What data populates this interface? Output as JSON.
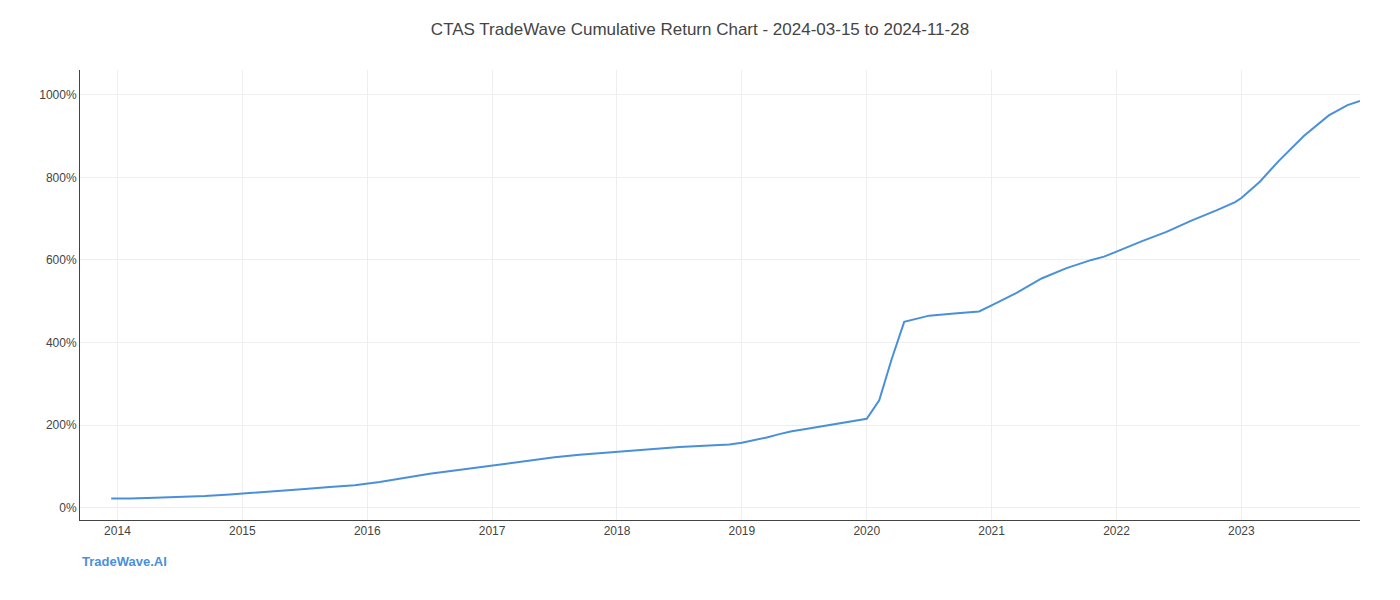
{
  "chart_data": {
    "type": "line",
    "title": "CTAS TradeWave Cumulative Return Chart - 2024-03-15 to 2024-11-28",
    "annotations": [
      "TradeWave.AI"
    ],
    "x": [
      2013.95,
      2014.1,
      2014.3,
      2014.5,
      2014.7,
      2014.9,
      2015.1,
      2015.3,
      2015.5,
      2015.7,
      2015.9,
      2016.1,
      2016.3,
      2016.5,
      2016.7,
      2016.9,
      2017.1,
      2017.3,
      2017.5,
      2017.7,
      2017.9,
      2018.1,
      2018.3,
      2018.5,
      2018.7,
      2018.9,
      2019.0,
      2019.1,
      2019.2,
      2019.3,
      2019.4,
      2019.5,
      2019.6,
      2019.7,
      2019.8,
      2019.9,
      2020.0,
      2020.1,
      2020.2,
      2020.3,
      2020.5,
      2020.7,
      2020.9,
      2021.0,
      2021.2,
      2021.4,
      2021.6,
      2021.8,
      2021.9,
      2022.0,
      2022.2,
      2022.4,
      2022.6,
      2022.8,
      2022.95,
      2023.0,
      2023.15,
      2023.3,
      2023.5,
      2023.7,
      2023.85,
      2023.95
    ],
    "values": [
      22,
      22,
      24,
      26,
      28,
      32,
      36,
      40,
      45,
      50,
      54,
      62,
      72,
      82,
      90,
      98,
      106,
      114,
      122,
      128,
      133,
      138,
      142,
      147,
      150,
      153,
      157,
      163,
      170,
      178,
      185,
      190,
      195,
      200,
      205,
      210,
      215,
      260,
      360,
      450,
      465,
      470,
      475,
      490,
      520,
      555,
      580,
      600,
      608,
      620,
      645,
      668,
      695,
      720,
      740,
      750,
      790,
      840,
      900,
      950,
      975,
      985
    ],
    "color": "#4a90d9",
    "xlim": [
      2013.7,
      2023.95
    ],
    "ylim": [
      -30,
      1060
    ],
    "xticks": [
      2014,
      2015,
      2016,
      2017,
      2018,
      2019,
      2020,
      2021,
      2022,
      2023
    ],
    "yticks": [
      {
        "value": 0,
        "label": "0%"
      },
      {
        "value": 200,
        "label": "200%"
      },
      {
        "value": 400,
        "label": "400%"
      },
      {
        "value": 600,
        "label": "600%"
      },
      {
        "value": 800,
        "label": "800%"
      },
      {
        "value": 1000,
        "label": "1000%"
      }
    ],
    "grid": true
  }
}
